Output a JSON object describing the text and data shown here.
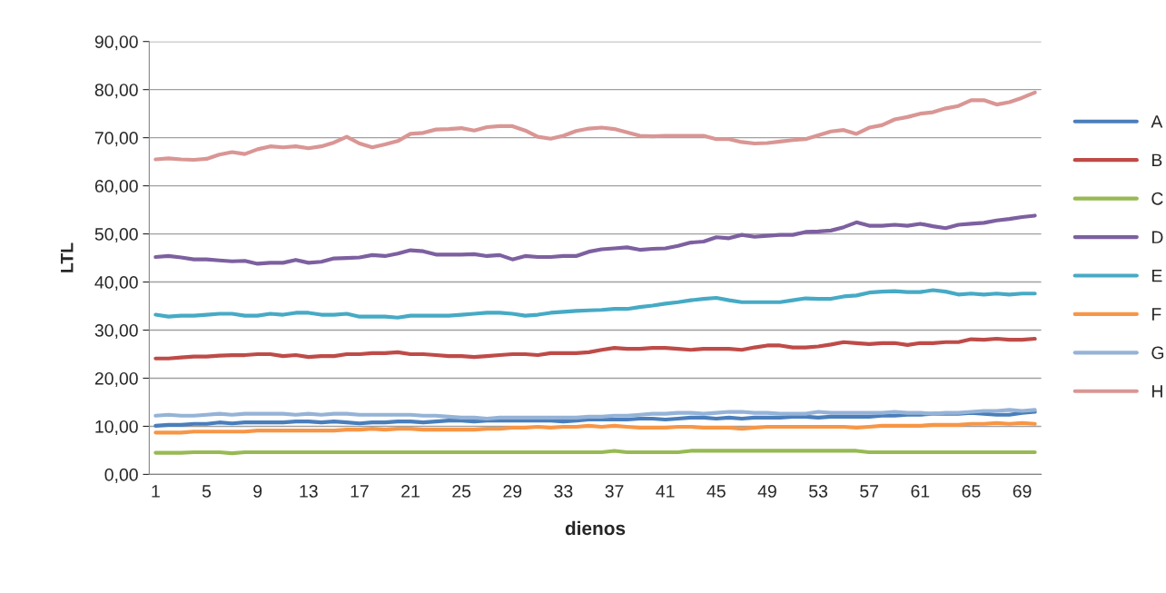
{
  "chart_data": {
    "type": "line",
    "xlabel": "dienos",
    "ylabel": "LTL",
    "categories": [
      "1",
      null,
      null,
      null,
      "5",
      null,
      null,
      null,
      "9",
      null,
      null,
      null,
      "13",
      null,
      null,
      null,
      "17",
      null,
      null,
      null,
      "21",
      null,
      null,
      null,
      "25",
      null,
      null,
      null,
      "29",
      null,
      null,
      null,
      "33",
      null,
      null,
      null,
      "37",
      null,
      null,
      null,
      "41",
      null,
      null,
      null,
      "45",
      null,
      null,
      null,
      "49",
      null,
      null,
      null,
      "53",
      null,
      null,
      null,
      "57",
      null,
      null,
      null,
      "61",
      null,
      null,
      null,
      "65",
      null,
      null,
      null,
      "69",
      null
    ],
    "ylim": [
      0,
      90
    ],
    "yticks": [
      {
        "value": 0,
        "label": "0,00"
      },
      {
        "value": 10,
        "label": "10,00"
      },
      {
        "value": 20,
        "label": "20,00"
      },
      {
        "value": 30,
        "label": "30,00"
      },
      {
        "value": 40,
        "label": "40,00"
      },
      {
        "value": 50,
        "label": "50,00"
      },
      {
        "value": 60,
        "label": "60,00"
      },
      {
        "value": 70,
        "label": "70,00"
      },
      {
        "value": 80,
        "label": "80,00"
      },
      {
        "value": 90,
        "label": "90,00"
      }
    ],
    "grid": "y",
    "legend": "right",
    "marker": "none",
    "line_style": "solid",
    "series": [
      {
        "name": "A",
        "color": "#4a7ebb",
        "values": [
          10.1,
          10.3,
          10.3,
          10.5,
          10.5,
          10.8,
          10.6,
          10.8,
          10.8,
          10.8,
          10.8,
          11.0,
          11.0,
          10.8,
          11.0,
          10.8,
          10.6,
          10.8,
          10.8,
          11.0,
          11.0,
          10.8,
          11.0,
          11.2,
          11.2,
          11.0,
          11.2,
          11.2,
          11.2,
          11.2,
          11.2,
          11.2,
          11.0,
          11.2,
          11.4,
          11.4,
          11.4,
          11.4,
          11.6,
          11.6,
          11.4,
          11.6,
          11.8,
          11.8,
          11.6,
          11.8,
          11.6,
          11.8,
          11.8,
          11.8,
          12.0,
          12.0,
          11.8,
          12.0,
          12.0,
          12.0,
          12.0,
          12.2,
          12.2,
          12.4,
          12.4,
          12.6,
          12.6,
          12.6,
          12.8,
          12.6,
          12.4,
          12.4,
          12.8,
          13.0
        ]
      },
      {
        "name": "B",
        "color": "#be4b48",
        "values": [
          24.1,
          24.1,
          24.3,
          24.5,
          24.5,
          24.7,
          24.8,
          24.8,
          25.0,
          25.0,
          24.6,
          24.8,
          24.4,
          24.6,
          24.6,
          25.0,
          25.0,
          25.2,
          25.2,
          25.4,
          25.0,
          25.0,
          24.8,
          24.6,
          24.6,
          24.4,
          24.6,
          24.8,
          25.0,
          25.0,
          24.8,
          25.2,
          25.2,
          25.2,
          25.4,
          25.9,
          26.3,
          26.1,
          26.1,
          26.3,
          26.3,
          26.1,
          25.9,
          26.1,
          26.1,
          26.1,
          25.9,
          26.4,
          26.8,
          26.8,
          26.4,
          26.4,
          26.6,
          27.0,
          27.5,
          27.3,
          27.1,
          27.3,
          27.3,
          26.9,
          27.3,
          27.3,
          27.5,
          27.5,
          28.1,
          28.0,
          28.2,
          28.0,
          28.0,
          28.2
        ]
      },
      {
        "name": "C",
        "color": "#98b954",
        "values": [
          4.5,
          4.5,
          4.5,
          4.6,
          4.6,
          4.6,
          4.4,
          4.6,
          4.6,
          4.6,
          4.6,
          4.6,
          4.6,
          4.6,
          4.6,
          4.6,
          4.6,
          4.6,
          4.6,
          4.6,
          4.6,
          4.6,
          4.6,
          4.6,
          4.6,
          4.6,
          4.6,
          4.6,
          4.6,
          4.6,
          4.6,
          4.6,
          4.6,
          4.6,
          4.6,
          4.6,
          4.9,
          4.6,
          4.6,
          4.6,
          4.6,
          4.6,
          4.9,
          4.9,
          4.9,
          4.9,
          4.9,
          4.9,
          4.9,
          4.9,
          4.9,
          4.9,
          4.9,
          4.9,
          4.9,
          4.9,
          4.6,
          4.6,
          4.6,
          4.6,
          4.6,
          4.6,
          4.6,
          4.6,
          4.6,
          4.6,
          4.6,
          4.6,
          4.6,
          4.6
        ]
      },
      {
        "name": "D",
        "color": "#7d60a0",
        "values": [
          45.2,
          45.4,
          45.1,
          44.7,
          44.7,
          44.5,
          44.3,
          44.4,
          43.8,
          44.0,
          44.0,
          44.6,
          44.0,
          44.2,
          44.9,
          45.0,
          45.1,
          45.6,
          45.4,
          45.9,
          46.6,
          46.4,
          45.7,
          45.7,
          45.7,
          45.8,
          45.4,
          45.6,
          44.7,
          45.4,
          45.2,
          45.2,
          45.4,
          45.4,
          46.3,
          46.8,
          47.0,
          47.2,
          46.7,
          46.9,
          47.0,
          47.5,
          48.2,
          48.4,
          49.3,
          49.1,
          49.8,
          49.4,
          49.6,
          49.8,
          49.8,
          50.4,
          50.5,
          50.7,
          51.4,
          52.4,
          51.7,
          51.7,
          51.9,
          51.7,
          52.1,
          51.6,
          51.2,
          51.9,
          52.1,
          52.3,
          52.8,
          53.1,
          53.5,
          53.8
        ]
      },
      {
        "name": "E",
        "color": "#46aac5",
        "values": [
          33.2,
          32.8,
          33.0,
          33.0,
          33.2,
          33.4,
          33.4,
          33.0,
          33.0,
          33.4,
          33.2,
          33.6,
          33.6,
          33.2,
          33.2,
          33.4,
          32.8,
          32.8,
          32.8,
          32.6,
          33.0,
          33.0,
          33.0,
          33.0,
          33.2,
          33.4,
          33.6,
          33.6,
          33.4,
          33.0,
          33.2,
          33.6,
          33.8,
          34.0,
          34.1,
          34.2,
          34.4,
          34.4,
          34.8,
          35.1,
          35.5,
          35.8,
          36.2,
          36.5,
          36.7,
          36.2,
          35.8,
          35.8,
          35.8,
          35.8,
          36.2,
          36.6,
          36.5,
          36.5,
          37.0,
          37.2,
          37.8,
          38.0,
          38.1,
          37.9,
          37.9,
          38.3,
          38.0,
          37.4,
          37.6,
          37.4,
          37.6,
          37.4,
          37.6,
          37.6
        ]
      },
      {
        "name": "F",
        "color": "#f79646",
        "values": [
          8.7,
          8.7,
          8.7,
          8.9,
          8.9,
          8.9,
          8.9,
          8.9,
          9.1,
          9.1,
          9.1,
          9.1,
          9.1,
          9.1,
          9.1,
          9.3,
          9.3,
          9.5,
          9.3,
          9.5,
          9.5,
          9.3,
          9.3,
          9.3,
          9.3,
          9.3,
          9.5,
          9.5,
          9.7,
          9.7,
          9.9,
          9.7,
          9.9,
          9.9,
          10.1,
          9.9,
          10.1,
          9.9,
          9.7,
          9.7,
          9.7,
          9.9,
          9.9,
          9.7,
          9.7,
          9.7,
          9.5,
          9.7,
          9.9,
          9.9,
          9.9,
          9.9,
          9.9,
          9.9,
          9.9,
          9.7,
          9.9,
          10.1,
          10.1,
          10.1,
          10.1,
          10.3,
          10.3,
          10.3,
          10.5,
          10.5,
          10.7,
          10.5,
          10.7,
          10.5
        ]
      },
      {
        "name": "G",
        "color": "#95b3d7",
        "values": [
          12.2,
          12.4,
          12.2,
          12.2,
          12.4,
          12.6,
          12.4,
          12.6,
          12.6,
          12.6,
          12.6,
          12.4,
          12.6,
          12.4,
          12.6,
          12.6,
          12.4,
          12.4,
          12.4,
          12.4,
          12.4,
          12.2,
          12.2,
          12.0,
          11.8,
          11.8,
          11.6,
          11.8,
          11.8,
          11.8,
          11.8,
          11.8,
          11.8,
          11.8,
          12.0,
          12.0,
          12.2,
          12.2,
          12.4,
          12.6,
          12.6,
          12.8,
          12.8,
          12.6,
          12.8,
          13.0,
          13.0,
          12.8,
          12.8,
          12.6,
          12.6,
          12.6,
          13.0,
          12.8,
          12.8,
          12.8,
          12.8,
          12.8,
          13.0,
          12.8,
          12.8,
          12.6,
          12.8,
          12.8,
          13.0,
          13.2,
          13.2,
          13.4,
          13.2,
          13.4
        ]
      },
      {
        "name": "H",
        "color": "#d99694",
        "values": [
          65.5,
          65.7,
          65.5,
          65.4,
          65.6,
          66.5,
          67.0,
          66.6,
          67.6,
          68.2,
          68.0,
          68.2,
          67.8,
          68.2,
          69.0,
          70.2,
          68.8,
          68.0,
          68.6,
          69.3,
          70.8,
          71.0,
          71.7,
          71.8,
          72.0,
          71.5,
          72.2,
          72.4,
          72.4,
          71.5,
          70.2,
          69.8,
          70.4,
          71.4,
          71.9,
          72.1,
          71.8,
          71.1,
          70.4,
          70.3,
          70.4,
          70.4,
          70.4,
          70.4,
          69.7,
          69.7,
          69.1,
          68.8,
          68.9,
          69.2,
          69.5,
          69.7,
          70.5,
          71.3,
          71.6,
          70.8,
          72.1,
          72.6,
          73.8,
          74.3,
          75.0,
          75.3,
          76.1,
          76.6,
          77.8,
          77.8,
          76.9,
          77.4,
          78.3,
          79.4
        ]
      }
    ]
  }
}
